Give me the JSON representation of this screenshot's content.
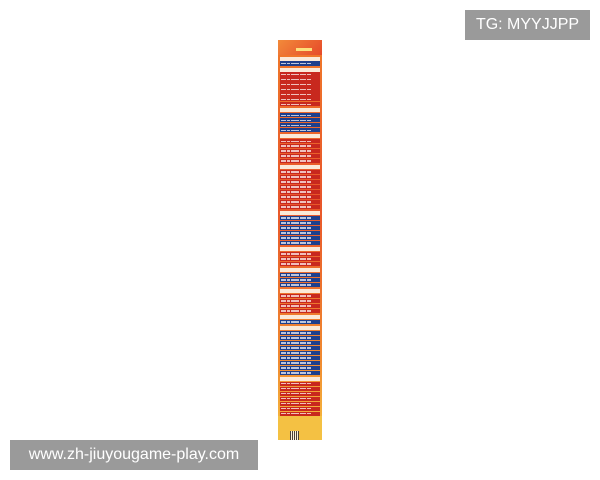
{
  "watermarks": {
    "top_right": "TG: MYYJJPP",
    "bottom_left": "www.zh-jiuyougame-play.com"
  },
  "colors": {
    "red": "#c8281e",
    "blue": "#1e3f8c",
    "header": "#fbe9d8",
    "footer": "#f4c143"
  },
  "sections": [
    {
      "kind": "blue",
      "rows": 1
    },
    {
      "kind": "red",
      "rows": 7
    },
    {
      "kind": "blue",
      "rows": 4
    },
    {
      "kind": "red",
      "rows": 5
    },
    {
      "kind": "red",
      "rows": 8
    },
    {
      "kind": "blue",
      "rows": 6
    },
    {
      "kind": "red",
      "rows": 3
    },
    {
      "kind": "blue",
      "rows": 3
    },
    {
      "kind": "red",
      "rows": 4
    },
    {
      "kind": "blue",
      "rows": 1
    },
    {
      "kind": "blue",
      "rows": 9
    },
    {
      "kind": "red",
      "rows": 7
    }
  ]
}
